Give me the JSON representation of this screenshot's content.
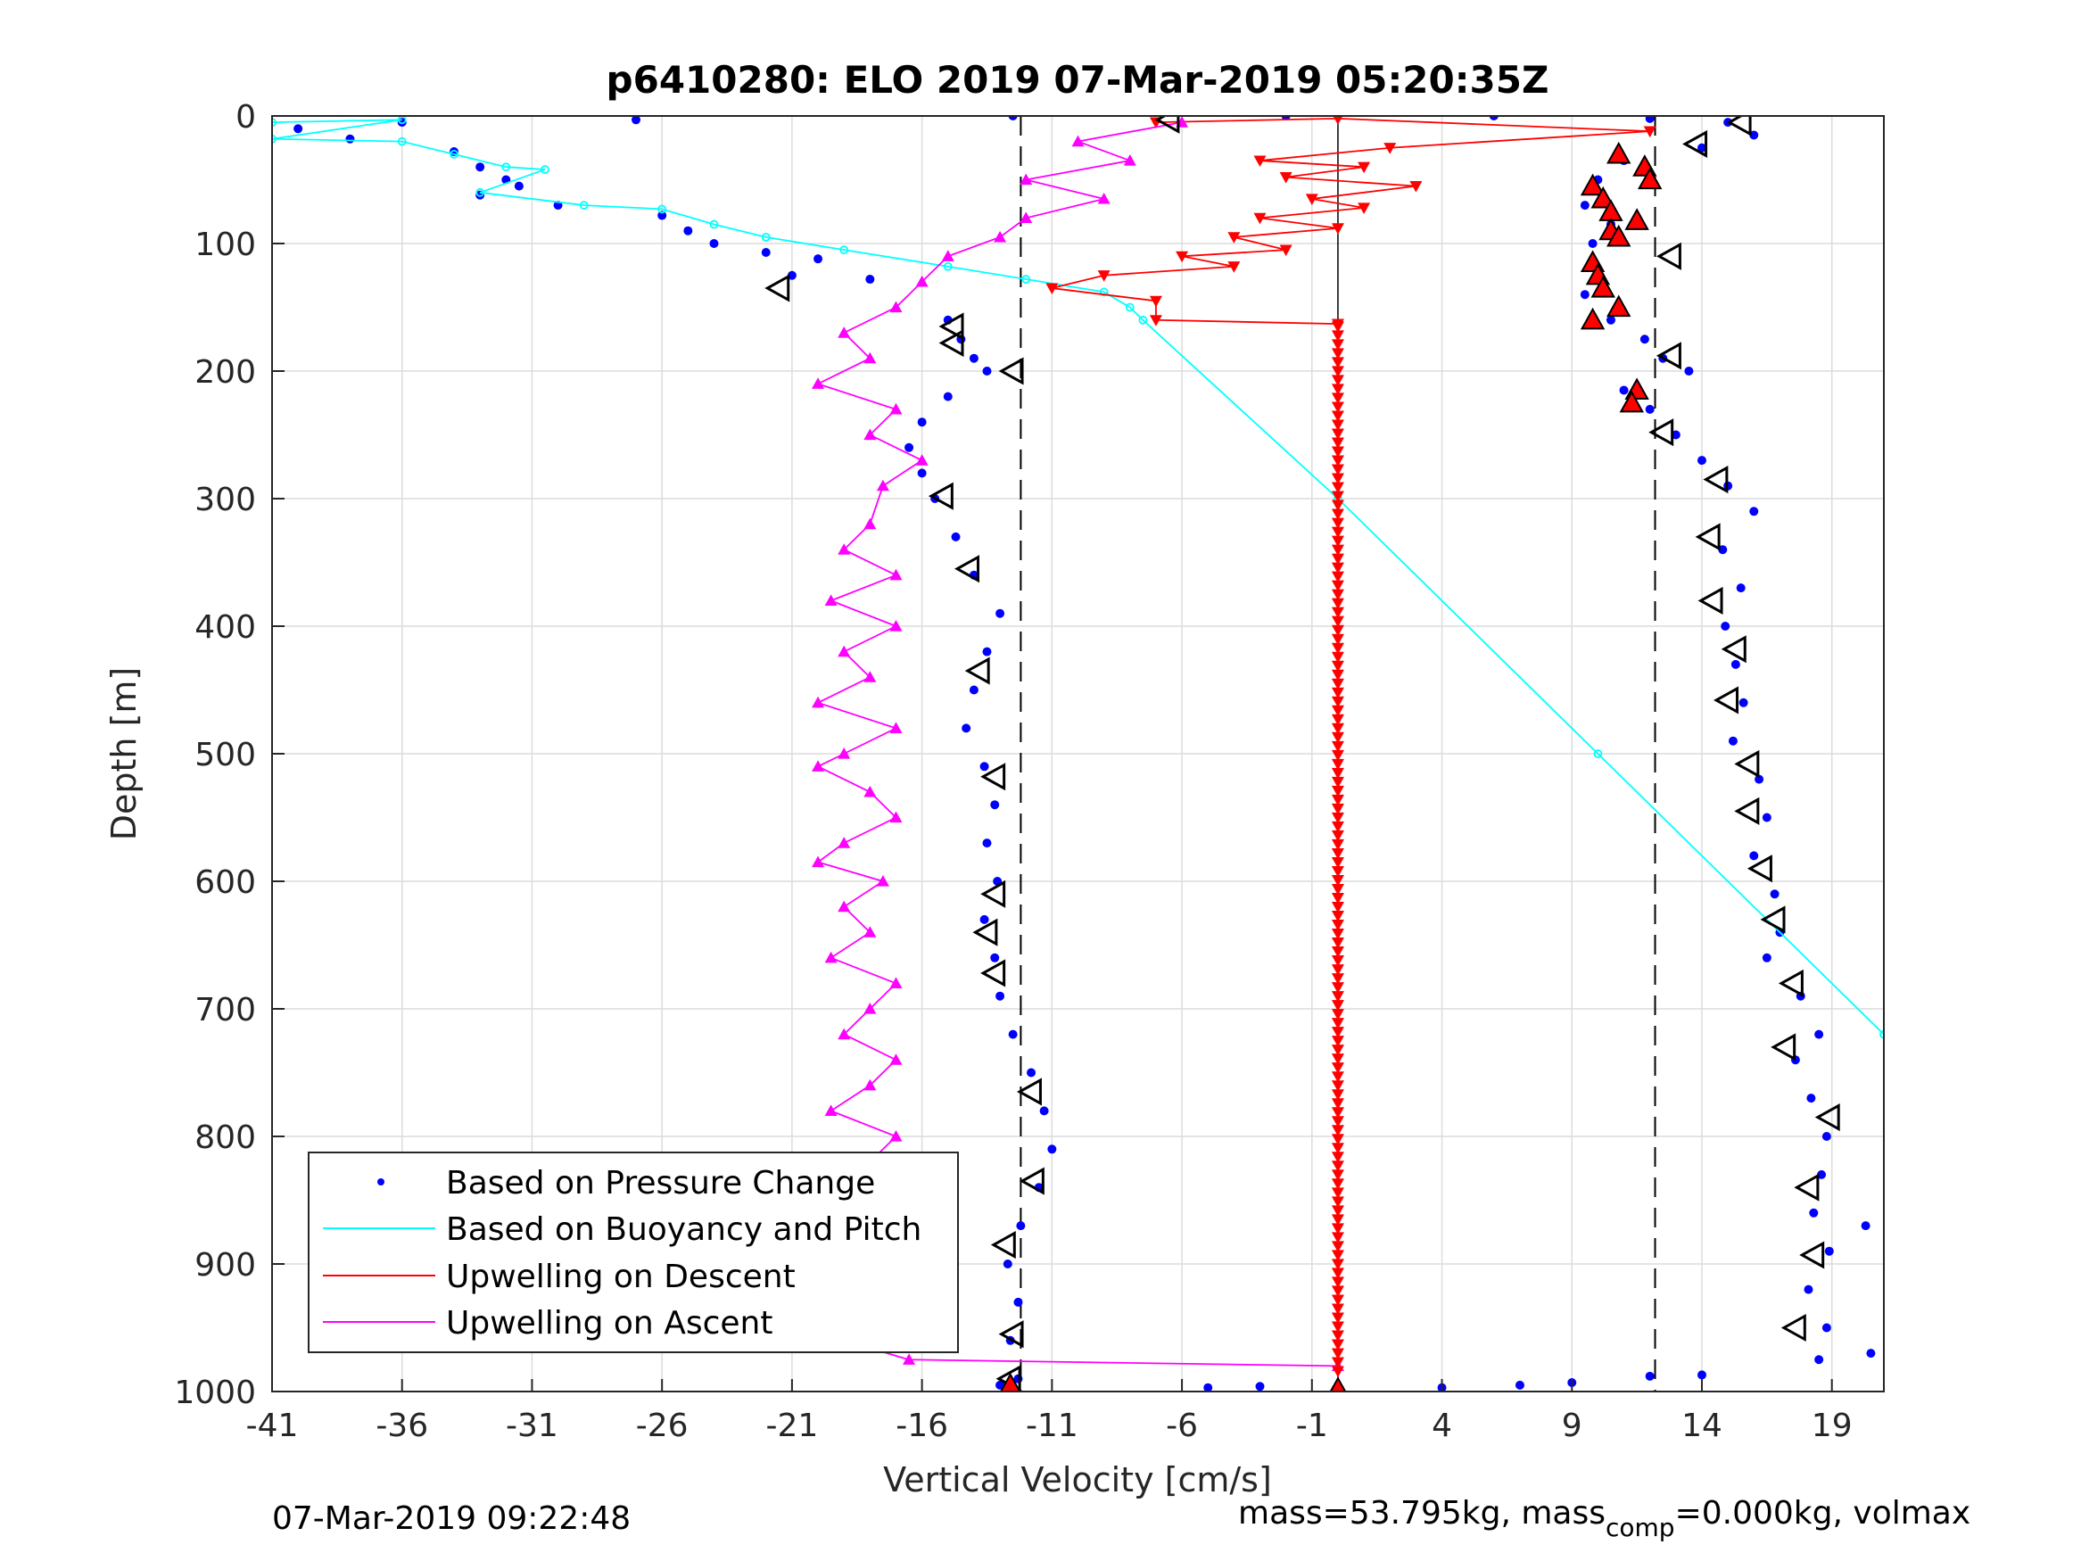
{
  "chart_data": {
    "type": "scatter",
    "title": "p6410280: ELO 2019 07-Mar-2019 05:20:35Z",
    "xlabel": "Vertical Velocity [cm/s]",
    "ylabel": "Depth [m]",
    "xlim": [
      -41,
      21
    ],
    "ylim": [
      0,
      1000
    ],
    "y_reversed": true,
    "xticks": [
      "-41",
      "-36",
      "-31",
      "-26",
      "-21",
      "-16",
      "-11",
      "-6",
      "-1",
      "4",
      "9",
      "14",
      "19"
    ],
    "yticks": [
      "0",
      "100",
      "200",
      "300",
      "400",
      "500",
      "600",
      "700",
      "800",
      "900",
      "1000"
    ],
    "grid": true,
    "legend_position": "bottom-left",
    "dashed_reference_lines_x": [
      -12.2,
      12.2
    ],
    "zero_line_x": 0,
    "series": [
      {
        "name": "Based on Pressure Change",
        "style": "dots",
        "color": "#0000ff",
        "points": [
          [
            -40,
            10
          ],
          [
            -38,
            18
          ],
          [
            -36,
            5
          ],
          [
            -27,
            3
          ],
          [
            -34,
            28
          ],
          [
            -33,
            40
          ],
          [
            -32,
            50
          ],
          [
            -33,
            62
          ],
          [
            -31.5,
            55
          ],
          [
            -30,
            70
          ],
          [
            -26,
            78
          ],
          [
            -25,
            90
          ],
          [
            -24,
            100
          ],
          [
            -22,
            107
          ],
          [
            -20,
            112
          ],
          [
            -21,
            125
          ],
          [
            -18,
            128
          ],
          [
            -15,
            160
          ],
          [
            -14.5,
            175
          ],
          [
            -14,
            190
          ],
          [
            -13.5,
            200
          ],
          [
            -15,
            220
          ],
          [
            -16,
            240
          ],
          [
            -16.5,
            260
          ],
          [
            -16,
            280
          ],
          [
            -15.5,
            300
          ],
          [
            -14.7,
            330
          ],
          [
            -14,
            360
          ],
          [
            -13,
            390
          ],
          [
            -13.5,
            420
          ],
          [
            -14,
            450
          ],
          [
            -14.3,
            480
          ],
          [
            -13.6,
            510
          ],
          [
            -13.2,
            540
          ],
          [
            -13.5,
            570
          ],
          [
            -13.1,
            600
          ],
          [
            -13.6,
            630
          ],
          [
            -13.2,
            660
          ],
          [
            -13.0,
            690
          ],
          [
            -12.5,
            720
          ],
          [
            -11.8,
            750
          ],
          [
            -11.3,
            780
          ],
          [
            -11.0,
            810
          ],
          [
            -11.5,
            840
          ],
          [
            -12.2,
            870
          ],
          [
            -12.7,
            900
          ],
          [
            -12.3,
            930
          ],
          [
            -12.6,
            960
          ],
          [
            -12.3,
            990
          ],
          [
            -13,
            995
          ],
          [
            -5,
            997
          ],
          [
            -3,
            996
          ],
          [
            0,
            998
          ],
          [
            4,
            997
          ],
          [
            7,
            995
          ],
          [
            9,
            993
          ],
          [
            12,
            988
          ],
          [
            14,
            987
          ],
          [
            -12.5,
            0
          ],
          [
            -2,
            0
          ],
          [
            6,
            0
          ],
          [
            12,
            2
          ],
          [
            15,
            5
          ],
          [
            16,
            15
          ],
          [
            14,
            25
          ],
          [
            11,
            35
          ],
          [
            10,
            50
          ],
          [
            9.5,
            70
          ],
          [
            10.5,
            85
          ],
          [
            9.8,
            100
          ],
          [
            10,
            120
          ],
          [
            9.5,
            140
          ],
          [
            10.5,
            160
          ],
          [
            11.8,
            175
          ],
          [
            12.5,
            190
          ],
          [
            13.5,
            200
          ],
          [
            11,
            215
          ],
          [
            12,
            230
          ],
          [
            13,
            250
          ],
          [
            14,
            270
          ],
          [
            15,
            290
          ],
          [
            16,
            310
          ],
          [
            14.8,
            340
          ],
          [
            15.5,
            370
          ],
          [
            14.9,
            400
          ],
          [
            15.3,
            430
          ],
          [
            15.6,
            460
          ],
          [
            15.2,
            490
          ],
          [
            16.2,
            520
          ],
          [
            16.5,
            550
          ],
          [
            16,
            580
          ],
          [
            16.8,
            610
          ],
          [
            17,
            640
          ],
          [
            16.5,
            660
          ],
          [
            17.8,
            690
          ],
          [
            18.5,
            720
          ],
          [
            17.6,
            740
          ],
          [
            18.2,
            770
          ],
          [
            18.8,
            800
          ],
          [
            18.6,
            830
          ],
          [
            18.3,
            860
          ],
          [
            18.9,
            890
          ],
          [
            18.1,
            920
          ],
          [
            18.8,
            950
          ],
          [
            18.5,
            975
          ],
          [
            20.5,
            970
          ],
          [
            20.3,
            870
          ]
        ]
      },
      {
        "name": "Based on Buoyancy and Pitch",
        "style": "line-with-circles",
        "color": "#00ffff",
        "points": [
          [
            -41,
            5
          ],
          [
            -36,
            3
          ],
          [
            -41,
            18
          ],
          [
            -36,
            20
          ],
          [
            -34,
            30
          ],
          [
            -32,
            40
          ],
          [
            -30.5,
            42
          ],
          [
            -33,
            60
          ],
          [
            -29,
            70
          ],
          [
            -26,
            73
          ],
          [
            -24,
            85
          ],
          [
            -22,
            95
          ],
          [
            -19,
            105
          ],
          [
            -15,
            118
          ],
          [
            -12,
            128
          ],
          [
            -9,
            138
          ],
          [
            -8,
            150
          ],
          [
            -7.5,
            160
          ],
          [
            0,
            300
          ],
          [
            10,
            500
          ],
          [
            21,
            720
          ]
        ]
      },
      {
        "name": "Upwelling on Descent",
        "style": "line-with-down-triangles",
        "color": "#ff0000",
        "points": [
          [
            -7,
            5
          ],
          [
            0,
            2
          ],
          [
            12,
            12
          ],
          [
            2,
            25
          ],
          [
            -3,
            35
          ],
          [
            1,
            40
          ],
          [
            -2,
            48
          ],
          [
            3,
            55
          ],
          [
            -1,
            65
          ],
          [
            1,
            72
          ],
          [
            -3,
            80
          ],
          [
            0,
            88
          ],
          [
            -4,
            95
          ],
          [
            -2,
            105
          ],
          [
            -6,
            110
          ],
          [
            -4,
            118
          ],
          [
            -9,
            125
          ],
          [
            -11,
            135
          ],
          [
            -7,
            145
          ],
          [
            -7,
            160
          ],
          [
            0,
            163
          ],
          [
            0,
            1000
          ]
        ]
      },
      {
        "name": "Upwelling on Ascent",
        "style": "line-with-up-triangles",
        "color": "#ff00ff",
        "points": [
          [
            -6,
            5
          ],
          [
            -10,
            20
          ],
          [
            -8,
            35
          ],
          [
            -12,
            50
          ],
          [
            -9,
            65
          ],
          [
            -12,
            80
          ],
          [
            -13,
            95
          ],
          [
            -15,
            110
          ],
          [
            -16,
            130
          ],
          [
            -17,
            150
          ],
          [
            -19,
            170
          ],
          [
            -18,
            190
          ],
          [
            -20,
            210
          ],
          [
            -17,
            230
          ],
          [
            -18,
            250
          ],
          [
            -16,
            270
          ],
          [
            -17.5,
            290
          ],
          [
            -18,
            320
          ],
          [
            -19,
            340
          ],
          [
            -17,
            360
          ],
          [
            -19.5,
            380
          ],
          [
            -17,
            400
          ],
          [
            -19,
            420
          ],
          [
            -18,
            440
          ],
          [
            -20,
            460
          ],
          [
            -17,
            480
          ],
          [
            -19,
            500
          ],
          [
            -20,
            510
          ],
          [
            -18,
            530
          ],
          [
            -17,
            550
          ],
          [
            -19,
            570
          ],
          [
            -20,
            585
          ],
          [
            -17.5,
            600
          ],
          [
            -19,
            620
          ],
          [
            -18,
            640
          ],
          [
            -19.5,
            660
          ],
          [
            -17,
            680
          ],
          [
            -18,
            700
          ],
          [
            -19,
            720
          ],
          [
            -17,
            740
          ],
          [
            -18,
            760
          ],
          [
            -19.5,
            780
          ],
          [
            -17,
            800
          ],
          [
            -18,
            820
          ],
          [
            -16,
            840
          ],
          [
            -18,
            860
          ],
          [
            -20,
            880
          ],
          [
            -17,
            900
          ],
          [
            -18.5,
            920
          ],
          [
            -16,
            940
          ],
          [
            -19,
            960
          ],
          [
            -16.5,
            975
          ],
          [
            0,
            980
          ],
          [
            0,
            1000
          ]
        ]
      }
    ],
    "marker_series": [
      {
        "style": "open-triangle-left",
        "color": "#000000",
        "points": [
          [
            -6.5,
            3
          ],
          [
            15.5,
            5
          ],
          [
            13.8,
            22
          ],
          [
            -21.5,
            135
          ],
          [
            12.8,
            110
          ],
          [
            -14.8,
            165
          ],
          [
            -14.8,
            178
          ],
          [
            -12.5,
            200
          ],
          [
            12.8,
            188
          ],
          [
            12.5,
            248
          ],
          [
            -15.2,
            298
          ],
          [
            14.6,
            285
          ],
          [
            -14.2,
            355
          ],
          [
            14.3,
            330
          ],
          [
            14.4,
            380
          ],
          [
            -13.8,
            435
          ],
          [
            15.3,
            418
          ],
          [
            15,
            458
          ],
          [
            -13.2,
            518
          ],
          [
            15.8,
            508
          ],
          [
            15.8,
            545
          ],
          [
            -13.2,
            610
          ],
          [
            16.3,
            590
          ],
          [
            16.8,
            630
          ],
          [
            -13.5,
            640
          ],
          [
            -13.2,
            672
          ],
          [
            17.5,
            680
          ],
          [
            17.2,
            730
          ],
          [
            -11.8,
            765
          ],
          [
            -11.7,
            835
          ],
          [
            18.9,
            785
          ],
          [
            18.1,
            840
          ],
          [
            -12.8,
            885
          ],
          [
            18.3,
            893
          ],
          [
            -12.5,
            955
          ],
          [
            17.6,
            950
          ],
          [
            -12.6,
            990
          ]
        ]
      },
      {
        "style": "filled-triangle-up",
        "color": "#ff0000",
        "points": [
          [
            10.8,
            30
          ],
          [
            11.8,
            40
          ],
          [
            12,
            50
          ],
          [
            9.8,
            55
          ],
          [
            10.2,
            65
          ],
          [
            10.5,
            75
          ],
          [
            11.5,
            82
          ],
          [
            10.5,
            90
          ],
          [
            10.8,
            95
          ],
          [
            9.8,
            115
          ],
          [
            10,
            125
          ],
          [
            10.2,
            135
          ],
          [
            10.8,
            150
          ],
          [
            9.8,
            160
          ],
          [
            11.5,
            215
          ],
          [
            11.3,
            225
          ],
          [
            -12.6,
            995
          ],
          [
            0,
            998
          ]
        ]
      }
    ]
  },
  "legend": {
    "items": [
      "Based on Pressure Change",
      "Based on Buoyancy and Pitch",
      "Upwelling on Descent",
      "Upwelling on Ascent"
    ]
  },
  "footer": {
    "timestamp": "07-Mar-2019 09:22:48",
    "mass_text_1": "mass=53.795kg, mass",
    "mass_sub": "comp",
    "mass_text_2": "=0.000kg, volmax"
  }
}
